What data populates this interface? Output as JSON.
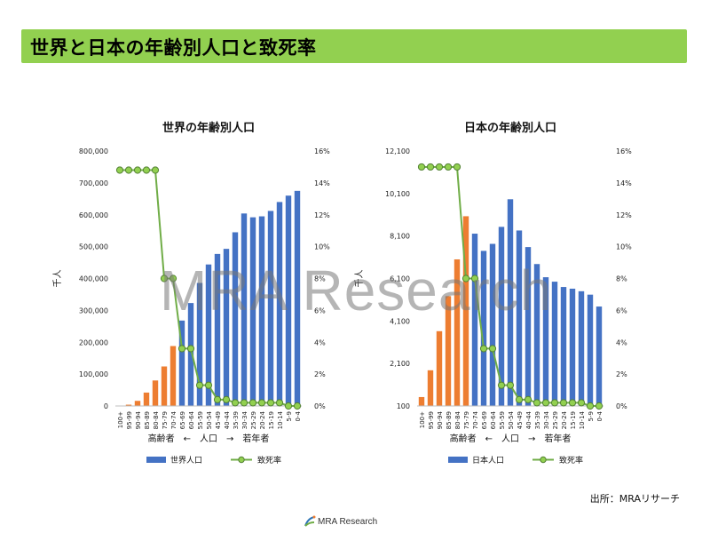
{
  "page": {
    "title": "世界と日本の年齢別人口と致死率",
    "watermark": "MRA Research",
    "source": "出所：MRAリサーチ",
    "logo_text": "MRA Research"
  },
  "chart_data": [
    {
      "type": "bar+line",
      "title": "世界の年齢別人口",
      "ylabel": "千人",
      "xlabel": "高齢者　←　人口　→　若年者",
      "categories": [
        "100+",
        "95-99",
        "90-94",
        "85-89",
        "80-84",
        "75-79",
        "70-74",
        "65-69",
        "60-64",
        "55-59",
        "50-54",
        "45-49",
        "40-44",
        "35-39",
        "30-34",
        "25-29",
        "20-24",
        "15-19",
        "10-14",
        "5-9",
        "0-4"
      ],
      "y_ticks": [
        "0",
        "100,000",
        "200,000",
        "300,000",
        "400,000",
        "500,000",
        "600,000",
        "700,000",
        "800,000"
      ],
      "ylim": [
        0,
        800000
      ],
      "y2_ticks": [
        "0%",
        "2%",
        "4%",
        "6%",
        "8%",
        "10%",
        "12%",
        "14%",
        "16%"
      ],
      "y2lim": [
        0,
        16
      ],
      "series": [
        {
          "name": "世界人口",
          "kind": "bar",
          "values": [
            500,
            4000,
            16000,
            42000,
            80000,
            124000,
            188000,
            268000,
            323000,
            386000,
            444000,
            477000,
            493000,
            545000,
            604000,
            592000,
            595000,
            612000,
            640000,
            660000,
            675000
          ],
          "bar_colors": [
            "#ed7d31",
            "#ed7d31",
            "#ed7d31",
            "#ed7d31",
            "#ed7d31",
            "#ed7d31",
            "#ed7d31",
            "#4472c4",
            "#4472c4",
            "#4472c4",
            "#4472c4",
            "#4472c4",
            "#4472c4",
            "#4472c4",
            "#4472c4",
            "#4472c4",
            "#4472c4",
            "#4472c4",
            "#4472c4",
            "#4472c4",
            "#4472c4"
          ]
        },
        {
          "name": "致死率",
          "kind": "line",
          "axis": "right",
          "values": [
            14.8,
            14.8,
            14.8,
            14.8,
            14.8,
            8.0,
            8.0,
            3.6,
            3.6,
            1.3,
            1.3,
            0.4,
            0.4,
            0.2,
            0.2,
            0.2,
            0.2,
            0.2,
            0.2,
            0.0,
            0.0
          ]
        }
      ],
      "legend": "bottom"
    },
    {
      "type": "bar+line",
      "title": "日本の年齢別人口",
      "ylabel": "千人",
      "xlabel": "高齢者　←　人口　→　若年者",
      "categories": [
        "100+",
        "95-99",
        "90-94",
        "85-89",
        "80-84",
        "75-79",
        "70-74",
        "65-69",
        "60-64",
        "55-59",
        "50-54",
        "45-49",
        "40-44",
        "35-39",
        "30-34",
        "25-29",
        "20-24",
        "15-19",
        "10-14",
        "5-9",
        "0-4"
      ],
      "y_ticks": [
        "100",
        "2,100",
        "4,100",
        "6,100",
        "8,100",
        "10,100",
        "12,100"
      ],
      "ylim": [
        100,
        12100
      ],
      "y2_ticks": [
        "0%",
        "2%",
        "4%",
        "6%",
        "8%",
        "10%",
        "12%",
        "14%",
        "16%"
      ],
      "y2lim": [
        0,
        16
      ],
      "series": [
        {
          "name": "日本人口",
          "kind": "bar",
          "values": [
            520,
            1780,
            3620,
            5270,
            7000,
            9030,
            8210,
            7400,
            7730,
            8530,
            9830,
            8360,
            7580,
            6780,
            6160,
            5950,
            5700,
            5620,
            5500,
            5340,
            4780
          ],
          "bar_colors": [
            "#ed7d31",
            "#ed7d31",
            "#ed7d31",
            "#ed7d31",
            "#ed7d31",
            "#ed7d31",
            "#4472c4",
            "#4472c4",
            "#4472c4",
            "#4472c4",
            "#4472c4",
            "#4472c4",
            "#4472c4",
            "#4472c4",
            "#4472c4",
            "#4472c4",
            "#4472c4",
            "#4472c4",
            "#4472c4",
            "#4472c4",
            "#4472c4"
          ]
        },
        {
          "name": "致死率",
          "kind": "line",
          "axis": "right",
          "values": [
            15.0,
            15.0,
            15.0,
            15.0,
            15.0,
            8.0,
            8.0,
            3.6,
            3.6,
            1.3,
            1.3,
            0.4,
            0.4,
            0.2,
            0.2,
            0.2,
            0.2,
            0.2,
            0.2,
            0.0,
            0.0
          ]
        }
      ],
      "legend": "bottom"
    }
  ],
  "colors": {
    "accent": "#92d050",
    "bar_blue": "#4472c4",
    "bar_orange": "#ed7d31",
    "line_green": "#70ad47",
    "marker_fill": "#92d050"
  }
}
